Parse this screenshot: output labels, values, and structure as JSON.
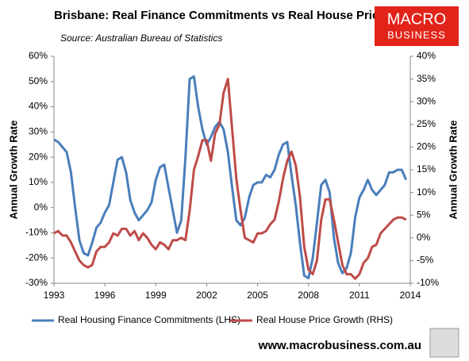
{
  "chart_data": {
    "type": "line",
    "title": "Brisbane: Real Finance Commitments vs Real House Prices",
    "subtitle": "Source: Australian Bureau of Statistics",
    "ylabel": "Annual Growth Rate",
    "y2label": "Annual Growth Rate",
    "logo_text": [
      "MACRO",
      "BUSINESS"
    ],
    "website": "www.macrobusiness.com.au",
    "xlim": [
      1993,
      2014
    ],
    "xticks": [
      1993,
      1996,
      1999,
      2002,
      2005,
      2008,
      2011,
      2014
    ],
    "ylim": [
      -30,
      60
    ],
    "yticks": [
      {
        "value": -30,
        "label": "-30%"
      },
      {
        "value": -20,
        "label": "-20%"
      },
      {
        "value": -10,
        "label": "-10%"
      },
      {
        "value": 0,
        "label": "0%"
      },
      {
        "value": 10,
        "label": "10%"
      },
      {
        "value": 20,
        "label": "20%"
      },
      {
        "value": 30,
        "label": "30%"
      },
      {
        "value": 40,
        "label": "40%"
      },
      {
        "value": 50,
        "label": "50%"
      },
      {
        "value": 60,
        "label": "60%"
      }
    ],
    "y2lim": [
      -10,
      40
    ],
    "y2ticks": [
      {
        "value": -10,
        "label": "-10%"
      },
      {
        "value": -5,
        "label": "-5%"
      },
      {
        "value": 0,
        "label": "0%"
      },
      {
        "value": 5,
        "label": "5%"
      },
      {
        "value": 10,
        "label": "10%"
      },
      {
        "value": 15,
        "label": "15%"
      },
      {
        "value": 20,
        "label": "20%"
      },
      {
        "value": 25,
        "label": "25%"
      },
      {
        "value": 30,
        "label": "30%"
      },
      {
        "value": 35,
        "label": "35%"
      },
      {
        "value": 40,
        "label": "40%"
      }
    ],
    "grid": false,
    "legend": "bottom",
    "x": [
      1993,
      1993.25,
      1993.5,
      1993.75,
      1994,
      1994.25,
      1994.5,
      1994.75,
      1995,
      1995.25,
      1995.5,
      1995.75,
      1996,
      1996.25,
      1996.5,
      1996.75,
      1997,
      1997.25,
      1997.5,
      1997.75,
      1998,
      1998.25,
      1998.5,
      1998.75,
      1999,
      1999.25,
      1999.5,
      1999.75,
      2000,
      2000.25,
      2000.5,
      2000.75,
      2001,
      2001.25,
      2001.5,
      2001.75,
      2002,
      2002.25,
      2002.5,
      2002.75,
      2003,
      2003.25,
      2003.5,
      2003.75,
      2004,
      2004.25,
      2004.5,
      2004.75,
      2005,
      2005.25,
      2005.5,
      2005.75,
      2006,
      2006.25,
      2006.5,
      2006.75,
      2007,
      2007.25,
      2007.5,
      2007.75,
      2008,
      2008.25,
      2008.5,
      2008.75,
      2009,
      2009.25,
      2009.5,
      2009.75,
      2010,
      2010.25,
      2010.5,
      2010.75,
      2011,
      2011.25,
      2011.5,
      2011.75,
      2012,
      2012.25,
      2012.5,
      2012.75,
      2013,
      2013.25,
      2013.5,
      2013.75
    ],
    "series": [
      {
        "name": "Real Housing Finance Commitments (LHS)",
        "color": "#4a7ebb",
        "values": [
          27,
          26,
          24,
          22,
          14,
          0,
          -13,
          -18,
          -19,
          -14,
          -8,
          -6,
          -2,
          1,
          10,
          19,
          20,
          14,
          3,
          -2,
          -5,
          -3,
          -1,
          2,
          11,
          16,
          17,
          8,
          -1,
          -10,
          -5,
          20,
          51,
          52,
          40,
          31,
          25,
          28,
          32,
          34,
          31,
          22,
          8,
          -5,
          -7,
          -4,
          4,
          9,
          10,
          10,
          13,
          12,
          15,
          21,
          25,
          26,
          13,
          1,
          -14,
          -27,
          -28,
          -20,
          -6,
          9,
          11,
          6,
          -12,
          -22,
          -26,
          -24,
          -18,
          -4,
          4,
          7,
          11,
          7,
          5,
          7,
          9,
          14,
          14,
          15,
          15,
          11
        ]
      },
      {
        "name": "Real House Price Growth (RHS)",
        "color": "#be4b48",
        "axis": "y2",
        "values": [
          1,
          1.5,
          0.5,
          0.5,
          -1,
          -3,
          -5,
          -6,
          -6.5,
          -6,
          -3,
          -2,
          -2,
          -1,
          1,
          0.5,
          2,
          2,
          0.5,
          1.5,
          -0.5,
          1,
          0,
          -1.5,
          -2.5,
          -1,
          -1.5,
          -2.5,
          -0.5,
          -0.5,
          0,
          -0.5,
          6,
          15,
          18,
          21.5,
          21.5,
          17,
          23,
          25,
          32,
          35,
          24,
          13,
          6,
          0,
          -0.5,
          -1,
          1,
          1,
          1.5,
          3,
          4,
          8,
          13,
          17,
          19,
          16,
          9,
          -2,
          -7,
          -8,
          -5,
          4,
          8.5,
          8.5,
          4,
          -1,
          -6,
          -8,
          -8,
          -9,
          -8,
          -5.5,
          -4.5,
          -2,
          -1.5,
          1,
          2,
          3,
          4,
          4.5,
          4.5,
          4
        ]
      }
    ]
  }
}
